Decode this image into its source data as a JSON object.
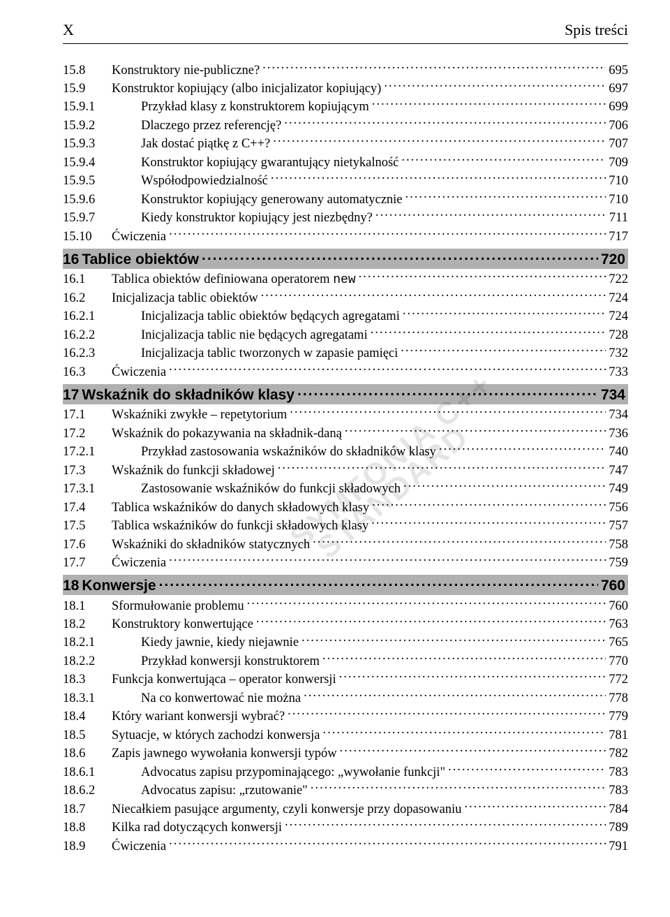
{
  "header": {
    "page_marker": "X",
    "title": "Spis treści"
  },
  "watermark": {
    "line1": "SYMFONIA C++",
    "line2": "STANDARD"
  },
  "colors": {
    "chapter_bg": "#b0b0b0",
    "text": "#000000",
    "watermark": "rgba(0,0,0,0.10)"
  },
  "sections": [
    {
      "type": "item",
      "num": "15.8",
      "text": "Konstruktory nie-publiczne?",
      "page": "695"
    },
    {
      "type": "item",
      "num": "15.9",
      "text": "Konstruktor kopiujący  (albo inicjalizator kopiujący)",
      "page": "697"
    },
    {
      "type": "sub",
      "num": "15.9.1",
      "text": "Przykład klasy z konstruktorem kopiującym",
      "page": "699"
    },
    {
      "type": "sub",
      "num": "15.9.2",
      "text": "Dlaczego przez referencję?",
      "page": "706"
    },
    {
      "type": "sub",
      "num": "15.9.3",
      "text": "Jak dostać piątkę z C++?",
      "page": "707"
    },
    {
      "type": "sub",
      "num": "15.9.4",
      "text": "Konstruktor kopiujący gwarantujący nietykalność",
      "page": "709"
    },
    {
      "type": "sub",
      "num": "15.9.5",
      "text": "Współodpowiedzialność",
      "page": "710"
    },
    {
      "type": "sub",
      "num": "15.9.6",
      "text": "Konstruktor kopiujący generowany automatycznie",
      "page": "710"
    },
    {
      "type": "sub",
      "num": "15.9.7",
      "text": "Kiedy konstruktor kopiujący jest niezbędny?",
      "page": "711"
    },
    {
      "type": "item",
      "num": "15.10",
      "text": "Ćwiczenia",
      "page": "717"
    },
    {
      "type": "chapter",
      "num": "16",
      "text": "Tablice obiektów",
      "page": "720"
    },
    {
      "type": "item",
      "num": "16.1",
      "text_html": "Tablica obiektów definiowana operatorem <span class='mono'>new</span>",
      "page": "722"
    },
    {
      "type": "item",
      "num": "16.2",
      "text": "Inicjalizacja tablic obiektów",
      "page": "724"
    },
    {
      "type": "sub",
      "num": "16.2.1",
      "text": "Inicjalizacja tablic obiektów będących agregatami",
      "page": "724"
    },
    {
      "type": "sub",
      "num": "16.2.2",
      "text": "Inicjalizacja tablic nie będących agregatami",
      "page": "728"
    },
    {
      "type": "sub",
      "num": "16.2.3",
      "text": "Inicjalizacja tablic tworzonych w zapasie pamięci",
      "page": "732"
    },
    {
      "type": "item",
      "num": "16.3",
      "text": "Ćwiczenia",
      "page": "733"
    },
    {
      "type": "chapter",
      "num": "17",
      "text": "Wskaźnik do składników klasy",
      "page": "734"
    },
    {
      "type": "item",
      "num": "17.1",
      "text": "Wskaźniki zwykłe – repetytorium",
      "page": "734"
    },
    {
      "type": "item",
      "num": "17.2",
      "text": "Wskaźnik do pokazywania na składnik-daną",
      "page": "736"
    },
    {
      "type": "sub",
      "num": "17.2.1",
      "text": "Przykład zastosowania wskaźników do składników klasy",
      "page": "740"
    },
    {
      "type": "item",
      "num": "17.3",
      "text": "Wskaźnik do funkcji składowej",
      "page": "747"
    },
    {
      "type": "sub",
      "num": "17.3.1",
      "text": "Zastosowanie wskaźników do funkcji składowych",
      "page": "749"
    },
    {
      "type": "item",
      "num": "17.4",
      "text": "Tablica wskaźników do danych składowych klasy",
      "page": "756"
    },
    {
      "type": "item",
      "num": "17.5",
      "text": "Tablica wskaźników do funkcji składowych klasy",
      "page": "757"
    },
    {
      "type": "item",
      "num": "17.6",
      "text": "Wskaźniki do składników statycznych",
      "page": "758"
    },
    {
      "type": "item",
      "num": "17.7",
      "text": "Ćwiczenia",
      "page": "759"
    },
    {
      "type": "chapter",
      "num": "18",
      "text": "Konwersje",
      "page": "760"
    },
    {
      "type": "item",
      "num": "18.1",
      "text": "Sformułowanie problemu",
      "page": "760"
    },
    {
      "type": "item",
      "num": "18.2",
      "text": "Konstruktory konwertujące",
      "page": "763"
    },
    {
      "type": "sub",
      "num": "18.2.1",
      "text": "Kiedy jawnie, kiedy niejawnie",
      "page": "765"
    },
    {
      "type": "sub",
      "num": "18.2.2",
      "text": "Przykład konwersji konstruktorem",
      "page": "770"
    },
    {
      "type": "item",
      "num": "18.3",
      "text": "Funkcja konwertująca – operator konwersji",
      "page": "772"
    },
    {
      "type": "sub",
      "num": "18.3.1",
      "text": "Na co konwertować nie można",
      "page": "778"
    },
    {
      "type": "item",
      "num": "18.4",
      "text": "Który wariant konwersji wybrać?",
      "page": "779"
    },
    {
      "type": "item",
      "num": "18.5",
      "text": "Sytuacje, w których zachodzi konwersja",
      "page": "781"
    },
    {
      "type": "item",
      "num": "18.6",
      "text": "Zapis jawnego wywołania konwersji typów ",
      "page": "782"
    },
    {
      "type": "sub",
      "num": "18.6.1",
      "text": "Advocatus zapisu przypominającego: „wywołanie funkcji\"",
      "page": "783"
    },
    {
      "type": "sub",
      "num": "18.6.2",
      "text": "Advocatus zapisu: „rzutowanie\"",
      "page": "783"
    },
    {
      "type": "item",
      "num": "18.7",
      "text": "Niecałkiem pasujące argumenty, czyli konwersje przy dopasowaniu",
      "page": "784"
    },
    {
      "type": "item",
      "num": "18.8",
      "text": "Kilka rad dotyczących konwersji",
      "page": "789"
    },
    {
      "type": "item",
      "num": "18.9",
      "text": "Ćwiczenia",
      "page": "791"
    }
  ]
}
